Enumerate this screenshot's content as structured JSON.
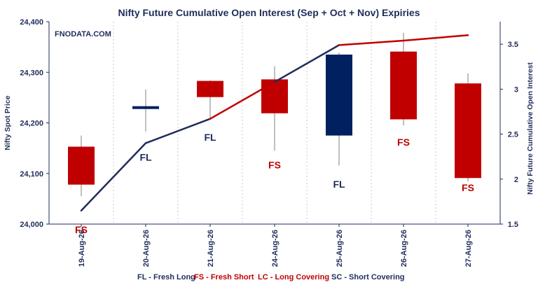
{
  "chart_data": {
    "type": "candlestick_with_line",
    "title": "Nifty Future Cumulative Open Interest (Sep + Oct + Nov) Expiries",
    "watermark": "FNODATA.COM",
    "ylabel_left": "Nifty Spot Price",
    "ylabel_right": "Nifty Future Cumulative Open Interest",
    "ylim_left": [
      24000,
      24400
    ],
    "ylim_right": [
      1.5,
      3.75
    ],
    "yticks_left": [
      "24,000",
      "24,100",
      "24,200",
      "24,300",
      "24,400"
    ],
    "yticks_right": [
      "1.5",
      "2",
      "2.5",
      "3",
      "3.5"
    ],
    "categories": [
      "19-Aug-26",
      "20-Aug-26",
      "21-Aug-26",
      "24-Aug-26",
      "25-Aug-26",
      "26-Aug-26",
      "27-Aug-26"
    ],
    "candles": [
      {
        "open": 24078,
        "close": 24153,
        "high": 24175,
        "low": 24055,
        "color": "#c00000"
      },
      {
        "open": 24233,
        "close": 24228,
        "high": 24266,
        "low": 24183,
        "color": "#002060"
      },
      {
        "open": 24283,
        "close": 24251,
        "high": 24284,
        "low": 24209,
        "color": "#c00000"
      },
      {
        "open": 24286,
        "close": 24219,
        "high": 24312,
        "low": 24145,
        "color": "#c00000"
      },
      {
        "open": 24175,
        "close": 24335,
        "high": 24339,
        "low": 24116,
        "color": "#002060"
      },
      {
        "open": 24341,
        "close": 24207,
        "high": 24378,
        "low": 24195,
        "color": "#c00000"
      },
      {
        "open": 24278,
        "close": 24091,
        "high": 24298,
        "low": 24084,
        "color": "#c00000"
      }
    ],
    "open_interest": [
      1.65,
      2.4,
      2.67,
      3.08,
      3.49,
      3.54,
      3.6
    ],
    "oi_segment_colors": [
      "#1f2d5a",
      "#1f2d5a",
      "#c00000",
      "#1f2d5a",
      "#c00000",
      "#c00000"
    ],
    "annotations": [
      {
        "text": "FS",
        "color": "#c00000"
      },
      {
        "text": "FL",
        "color": "#1f2d5a"
      },
      {
        "text": "FL",
        "color": "#1f2d5a"
      },
      {
        "text": "FS",
        "color": "#c00000"
      },
      {
        "text": "FL",
        "color": "#1f2d5a"
      },
      {
        "text": "FS",
        "color": "#c00000"
      },
      {
        "text": "FS",
        "color": "#c00000"
      }
    ],
    "annotation_values": [
      23982,
      24125,
      24165,
      24110,
      24072,
      24155,
      24065
    ],
    "legend": [
      {
        "text": "FL - Fresh Long",
        "color": "#1f2d5a"
      },
      {
        "text": "FS - Fresh Short",
        "color": "#c00000"
      },
      {
        "text": "LC - Long Covering",
        "color": "#c00000"
      },
      {
        "text": "SC - Short Covering",
        "color": "#1f2d5a"
      }
    ]
  }
}
